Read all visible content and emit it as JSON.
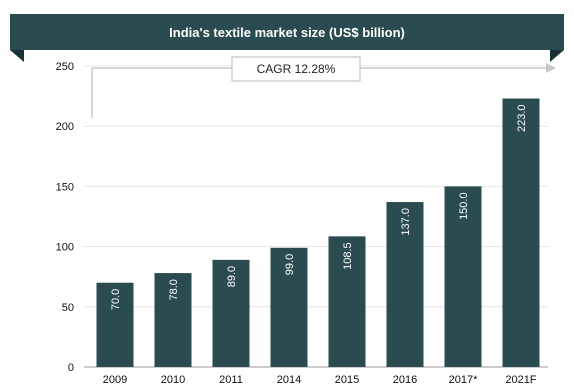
{
  "chart_data": {
    "type": "bar",
    "title": "India's textile market size (US$ billion)",
    "categories": [
      "2009",
      "2010",
      "2011",
      "2014",
      "2015",
      "2016",
      "2017*",
      "2021F"
    ],
    "values": [
      70.0,
      78.0,
      89.0,
      99.0,
      108.5,
      137.0,
      150.0,
      223.0
    ],
    "value_labels": [
      "70.0",
      "78.0",
      "89.0",
      "99.0",
      "108.5",
      "137.0",
      "150.0",
      "223.0"
    ],
    "y_ticks": [
      0,
      50,
      100,
      150,
      200,
      250
    ],
    "ylim": [
      0,
      250
    ],
    "xlabel": "",
    "ylabel": "",
    "grid": true,
    "legend": "none",
    "annotation": "CAGR 12.28%",
    "colors": {
      "bar": "#2a4b4f",
      "title_band": "#2a4b4f",
      "title_text": "#ffffff",
      "bar_label": "#ffffff",
      "axis_text": "#111111",
      "grid": "#e4e4e4",
      "arrow": "#c8c8c8"
    }
  }
}
